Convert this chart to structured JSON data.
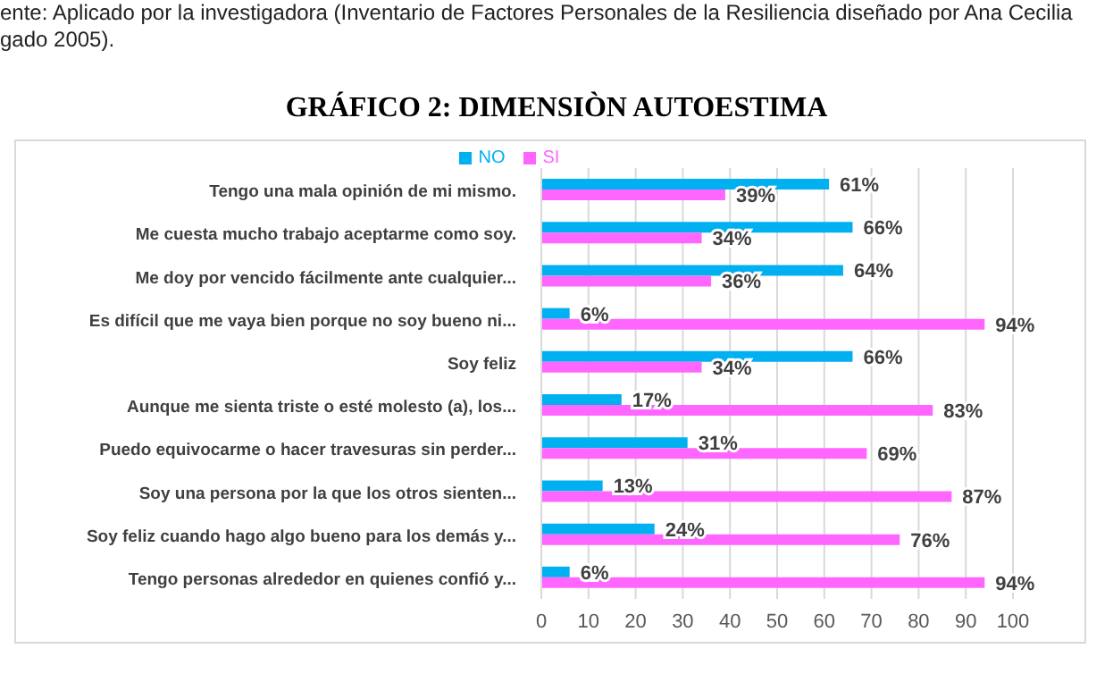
{
  "chart_data": {
    "type": "bar",
    "orientation": "horizontal",
    "title": "GRÁFICO 2: DIMENSIÒN AUTOESTIMA",
    "annotations": [
      "ente: Aplicado por la investigadora (Inventario de Factores Personales de la Resiliencia diseñado por Ana Cecilia",
      "gado 2005)."
    ],
    "categories": [
      "Tengo una mala opinión de mi mismo.",
      "Me cuesta mucho trabajo aceptarme como soy.",
      "Me doy por vencido fácilmente ante cualquier...",
      "Es difícil que me vaya bien porque no soy bueno ni...",
      "Soy feliz",
      "Aunque me sienta triste o esté molesto (a), los...",
      "Puedo equivocarme o hacer travesuras sin perder...",
      "Soy una persona por la que los otros sienten...",
      "Soy feliz cuando hago algo bueno para los demás y...",
      "Tengo personas alrededor en quienes confió y..."
    ],
    "series": [
      {
        "name": "NO",
        "color": "#00b0f0",
        "values": [
          61,
          66,
          64,
          6,
          66,
          17,
          31,
          13,
          24,
          6
        ],
        "value_labels": [
          "61%",
          "66%",
          "64%",
          "6%",
          "66%",
          "17%",
          "31%",
          "13%",
          "24%",
          "6%"
        ]
      },
      {
        "name": "SI",
        "color": "#ff66ff",
        "values": [
          39,
          34,
          36,
          94,
          34,
          83,
          69,
          87,
          76,
          94
        ],
        "value_labels": [
          "39%",
          "34%",
          "36%",
          "94%",
          "34%",
          "83%",
          "69%",
          "87%",
          "76%",
          "94%"
        ]
      }
    ],
    "xlim": [
      0,
      100
    ],
    "xticks": [
      0,
      10,
      20,
      30,
      40,
      50,
      60,
      70,
      80,
      90,
      100
    ],
    "grid": "x",
    "legend": "top"
  }
}
